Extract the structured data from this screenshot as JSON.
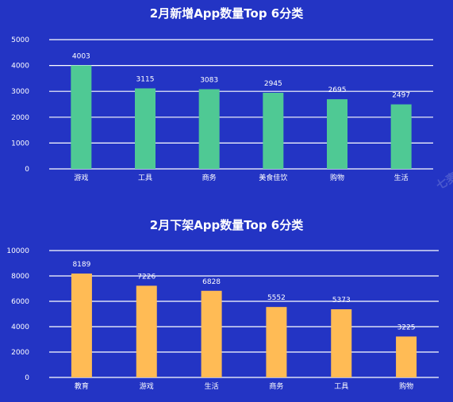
{
  "chart_data": [
    {
      "type": "bar",
      "title": "2月新增App数量Top 6分类",
      "categories": [
        "游戏",
        "工具",
        "商务",
        "美食佳饮",
        "购物",
        "生活"
      ],
      "values": [
        4003,
        3115,
        3083,
        2945,
        2695,
        2497
      ],
      "ylim": [
        0,
        5000
      ],
      "yticks": [
        0,
        1000,
        2000,
        3000,
        4000,
        5000
      ],
      "grid": true,
      "bar_color": "#4fc994"
    },
    {
      "type": "bar",
      "title": "2月下架App数量Top 6分类",
      "categories": [
        "教育",
        "游戏",
        "生活",
        "商务",
        "工具",
        "购物"
      ],
      "values": [
        8189,
        7226,
        6828,
        5552,
        5373,
        3225
      ],
      "ylim": [
        0,
        10000
      ],
      "yticks": [
        0,
        2000,
        4000,
        6000,
        8000,
        10000
      ],
      "grid": true,
      "bar_color": "#ffbb55"
    }
  ],
  "colors": {
    "background": "#2334c4",
    "gridline": "#ffffff",
    "text": "#ffffff"
  },
  "watermark": "七麦"
}
